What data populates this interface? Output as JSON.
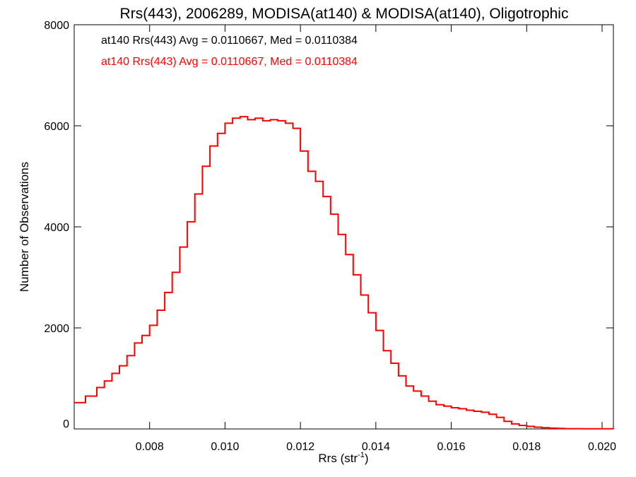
{
  "chart_data": {
    "type": "line",
    "step": true,
    "title": "Rrs(443), 2006289, MODISA(at140) & MODISA(at140), Oligotrophic",
    "xlabel": {
      "main": "Rrs (str",
      "sup": "-1",
      "end": ")"
    },
    "ylabel": "Number of Observations",
    "xlim": [
      0.006,
      0.0203
    ],
    "ylim": [
      0,
      8000
    ],
    "xticks": [
      0.008,
      0.01,
      0.012,
      0.014,
      0.016,
      0.018,
      0.02
    ],
    "xtick_labels": [
      "0.008",
      "0.010",
      "0.012",
      "0.014",
      "0.016",
      "0.018",
      "0.020"
    ],
    "yticks": [
      0,
      2000,
      4000,
      6000,
      8000
    ],
    "ytick_labels": [
      "0",
      "2000",
      "4000",
      "6000",
      "8000"
    ],
    "grid": false,
    "legend": [
      {
        "text": "at140 Rrs(443) Avg = 0.0110667, Med = 0.0110384",
        "color": "#000000"
      },
      {
        "text": "at140 Rrs(443) Avg = 0.0110667, Med = 0.0110384",
        "color": "#ff0000"
      }
    ],
    "series": [
      {
        "color": "#ff0000",
        "points": [
          [
            0.006,
            520
          ],
          [
            0.0063,
            650
          ],
          [
            0.0066,
            820
          ],
          [
            0.0068,
            950
          ],
          [
            0.007,
            1100
          ],
          [
            0.0072,
            1250
          ],
          [
            0.0074,
            1450
          ],
          [
            0.0076,
            1700
          ],
          [
            0.0078,
            1850
          ],
          [
            0.008,
            2050
          ],
          [
            0.0082,
            2350
          ],
          [
            0.0084,
            2700
          ],
          [
            0.0086,
            3100
          ],
          [
            0.0088,
            3600
          ],
          [
            0.009,
            4100
          ],
          [
            0.0092,
            4650
          ],
          [
            0.0094,
            5200
          ],
          [
            0.0096,
            5600
          ],
          [
            0.0098,
            5850
          ],
          [
            0.01,
            6050
          ],
          [
            0.0102,
            6150
          ],
          [
            0.0104,
            6180
          ],
          [
            0.0106,
            6120
          ],
          [
            0.0108,
            6150
          ],
          [
            0.011,
            6100
          ],
          [
            0.0112,
            6120
          ],
          [
            0.0114,
            6100
          ],
          [
            0.0116,
            6050
          ],
          [
            0.0118,
            5950
          ],
          [
            0.012,
            5500
          ],
          [
            0.0122,
            5100
          ],
          [
            0.0124,
            4900
          ],
          [
            0.0126,
            4600
          ],
          [
            0.0128,
            4250
          ],
          [
            0.013,
            3850
          ],
          [
            0.0132,
            3450
          ],
          [
            0.0134,
            3050
          ],
          [
            0.0136,
            2650
          ],
          [
            0.0138,
            2300
          ],
          [
            0.014,
            1950
          ],
          [
            0.0142,
            1550
          ],
          [
            0.0144,
            1300
          ],
          [
            0.0146,
            1050
          ],
          [
            0.0148,
            850
          ],
          [
            0.015,
            750
          ],
          [
            0.0152,
            650
          ],
          [
            0.0154,
            550
          ],
          [
            0.0156,
            480
          ],
          [
            0.0158,
            450
          ],
          [
            0.016,
            420
          ],
          [
            0.0162,
            400
          ],
          [
            0.0164,
            370
          ],
          [
            0.0166,
            350
          ],
          [
            0.0168,
            330
          ],
          [
            0.017,
            290
          ],
          [
            0.0172,
            230
          ],
          [
            0.0174,
            150
          ],
          [
            0.0176,
            100
          ],
          [
            0.0178,
            70
          ],
          [
            0.018,
            50
          ],
          [
            0.0182,
            35
          ],
          [
            0.0184,
            25
          ],
          [
            0.0186,
            15
          ],
          [
            0.0188,
            10
          ],
          [
            0.019,
            6
          ],
          [
            0.0195,
            3
          ],
          [
            0.0203,
            1
          ]
        ]
      }
    ]
  }
}
